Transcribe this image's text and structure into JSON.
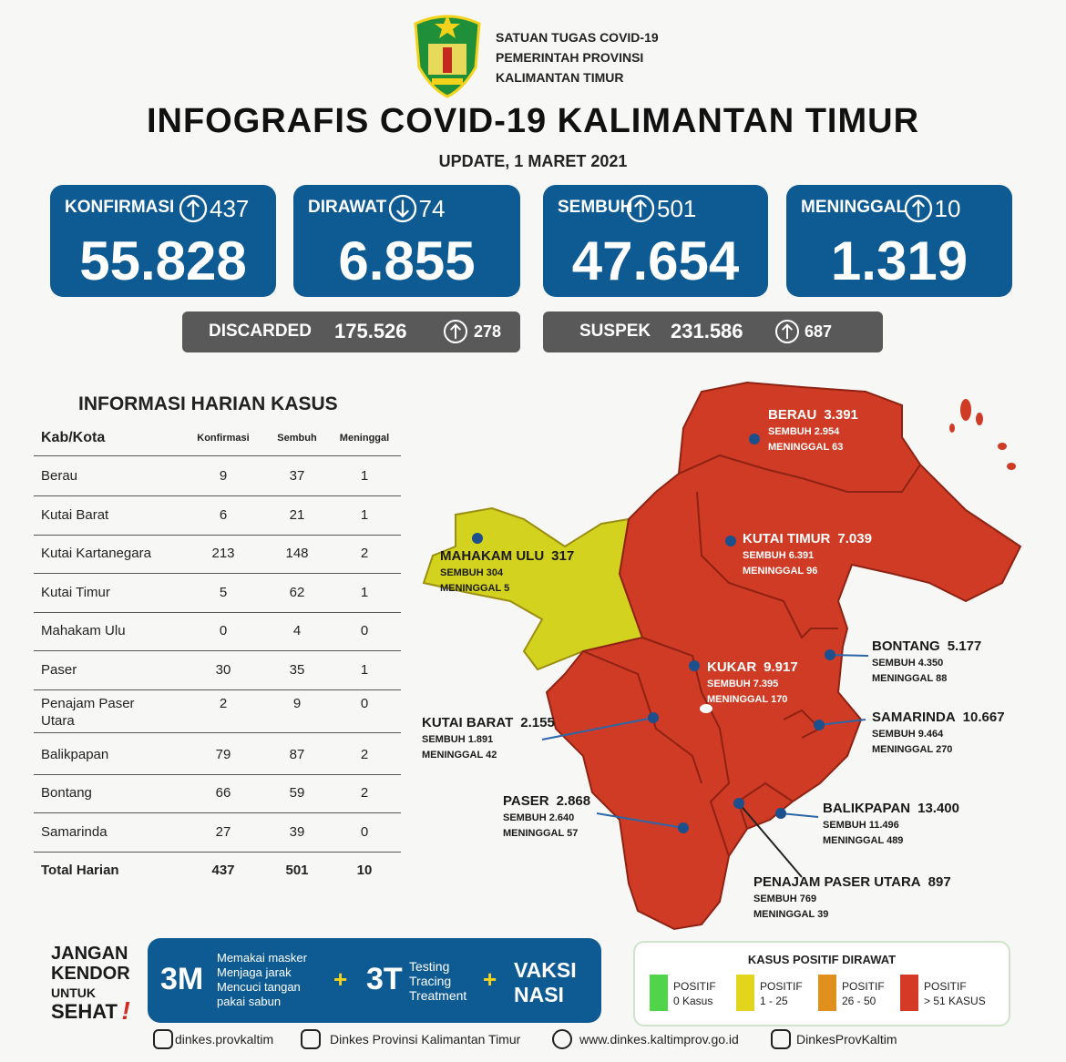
{
  "header": {
    "org": [
      "SATUAN TUGAS COVID-19",
      "PEMERINTAH PROVINSI",
      "KALIMANTAN TIMUR"
    ],
    "title": "INFOGRAFIS COVID-19 KALIMANTAN TIMUR",
    "update": "UPDATE, 1 MARET 2021"
  },
  "stats": [
    {
      "label": "KONFIRMASI",
      "change": "437",
      "direction": "up",
      "value": "55.828"
    },
    {
      "label": "DIRAWAT",
      "change": "74",
      "direction": "down",
      "value": "6.855"
    },
    {
      "label": "SEMBUH",
      "change": "501",
      "direction": "up",
      "value": "47.654"
    },
    {
      "label": "MENINGGAL",
      "change": "10",
      "direction": "up",
      "value": "1.319"
    }
  ],
  "secondary": [
    {
      "label": "DISCARDED",
      "value": "175.526",
      "change": "278",
      "direction": "up"
    },
    {
      "label": "SUSPEK",
      "value": "231.586",
      "change": "687",
      "direction": "up"
    }
  ],
  "table": {
    "title": "INFORMASI HARIAN KASUS",
    "header": [
      "Kab/Kota",
      "Konfirmasi",
      "Sembuh",
      "Meninggal"
    ],
    "rows": [
      [
        "Berau",
        "9",
        "37",
        "1"
      ],
      [
        "Kutai Barat",
        "6",
        "21",
        "1"
      ],
      [
        "Kutai Kartanegara",
        "213",
        "148",
        "2"
      ],
      [
        "Kutai Timur",
        "5",
        "62",
        "1"
      ],
      [
        "Mahakam Ulu",
        "0",
        "4",
        "0"
      ],
      [
        "Paser",
        "30",
        "35",
        "1"
      ],
      [
        "Penajam Paser Utara",
        "2",
        "9",
        "0"
      ],
      [
        "Balikpapan",
        "79",
        "87",
        "2"
      ],
      [
        "Bontang",
        "66",
        "59",
        "2"
      ],
      [
        "Samarinda",
        "27",
        "39",
        "0"
      ]
    ],
    "total": [
      "Total Harian",
      "437",
      "501",
      "10"
    ]
  },
  "map": {
    "regions": [
      {
        "name": "BERAU",
        "value": "3.391",
        "sembuh": "SEMBUH 2.954",
        "meninggal": "MENINGGAL 63"
      },
      {
        "name": "KUTAI TIMUR",
        "value": "7.039",
        "sembuh": "SEMBUH 6.391",
        "meninggal": "MENINGGAL 96"
      },
      {
        "name": "MAHAKAM ULU",
        "value": "317",
        "sembuh": "SEMBUH 304",
        "meninggal": "MENINGGAL 5"
      },
      {
        "name": "KUKAR",
        "value": "9.917",
        "sembuh": "SEMBUH 7.395",
        "meninggal": "MENINGGAL 170"
      },
      {
        "name": "BONTANG",
        "value": "5.177",
        "sembuh": "SEMBUH 4.350",
        "meninggal": "MENINGGAL 88"
      },
      {
        "name": "KUTAI BARAT",
        "value": "2.155",
        "sembuh": "SEMBUH 1.891",
        "meninggal": "MENINGGAL 42"
      },
      {
        "name": "SAMARINDA",
        "value": "10.667",
        "sembuh": "SEMBUH 9.464",
        "meninggal": "MENINGGAL 270"
      },
      {
        "name": "PASER",
        "value": "2.868",
        "sembuh": "SEMBUH 2.640",
        "meninggal": "MENINGGAL 57"
      },
      {
        "name": "BALIKPAPAN",
        "value": "13.400",
        "sembuh": "SEMBUH 11.496",
        "meninggal": "MENINGGAL 489"
      },
      {
        "name": "PENAJAM PASER UTARA",
        "value": "897",
        "sembuh": "SEMBUH 769",
        "meninggal": "MENINGGAL 39"
      }
    ]
  },
  "footer": {
    "slogan": [
      "JANGAN",
      "KENDOR",
      "UNTUK",
      "SEHAT",
      "!"
    ],
    "m3": {
      "title": "3M",
      "items": [
        "Memakai masker",
        "Menjaga jarak",
        "Mencuci tangan",
        "pakai sabun"
      ]
    },
    "plus1": "+",
    "t3": {
      "title": "3T",
      "items": [
        "Testing",
        "Tracing",
        "Treatment"
      ]
    },
    "plus2": "+",
    "vaksin": [
      "VAKSI",
      "NASI"
    ]
  },
  "legend": {
    "title": "KASUS POSITIF DIRAWAT",
    "items": [
      {
        "lines": [
          "POSITIF",
          "0 Kasus"
        ],
        "color": "#4fd44a"
      },
      {
        "lines": [
          "POSITIF",
          "1 - 25"
        ],
        "color": "#e3d51d"
      },
      {
        "lines": [
          "POSITIF",
          "26 - 50"
        ],
        "color": "#e0901c"
      },
      {
        "lines": [
          "POSITIF",
          "> 51 KASUS"
        ],
        "color": "#d43a25"
      }
    ]
  },
  "social": [
    "dinkes.provkaltim",
    "Dinkes Provinsi Kalimantan Timur",
    "www.dinkes.kaltimprov.go.id",
    "DinkesProvKaltim"
  ]
}
